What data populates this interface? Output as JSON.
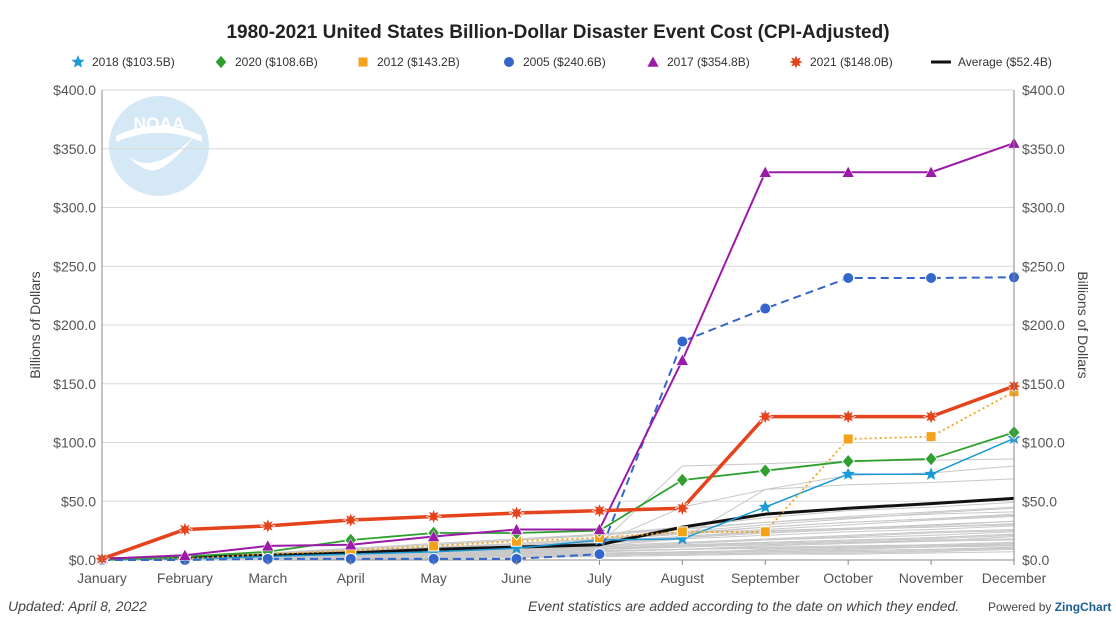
{
  "chart_data": {
    "type": "line",
    "title": "1980-2021 United States Billion-Dollar Disaster Event Cost (CPI-Adjusted)",
    "xlabel": "",
    "ylabel": "Billions of Dollars",
    "ylabel_right": "Billions of Dollars",
    "categories": [
      "January",
      "February",
      "March",
      "April",
      "May",
      "June",
      "July",
      "August",
      "September",
      "October",
      "November",
      "December"
    ],
    "ylim": [
      0,
      400
    ],
    "yticks": [
      "$0.0",
      "$50.0",
      "$100.0",
      "$150.0",
      "$200.0",
      "$250.0",
      "$300.0",
      "$350.0",
      "$400.0"
    ],
    "grid": true,
    "legend_position": "top",
    "series": [
      {
        "name": "2018 ($103.5B)",
        "color": "#1a9ad6",
        "marker": "star5",
        "dash": "solid",
        "width": 1.5,
        "values": [
          0,
          1,
          3,
          5,
          7,
          10,
          17,
          18,
          45,
          73,
          73,
          103.5
        ]
      },
      {
        "name": "2020 ($108.6B)",
        "color": "#2ea02e",
        "marker": "diamond",
        "dash": "solid",
        "width": 1.8,
        "values": [
          0,
          3,
          7,
          17,
          23,
          23,
          25,
          68,
          76,
          84,
          86,
          108.6
        ]
      },
      {
        "name": "2012 ($143.2B)",
        "color": "#f5a21b",
        "marker": "square",
        "dash": "dotted",
        "width": 1.8,
        "values": [
          0,
          1,
          5,
          8,
          12,
          16,
          19,
          24,
          24,
          103,
          105,
          143.2
        ]
      },
      {
        "name": "2005 ($240.6B)",
        "color": "#3466cc",
        "marker": "circle",
        "dash": "dashed",
        "width": 2,
        "values": [
          0,
          0,
          1,
          1,
          1,
          1,
          5,
          186,
          214,
          240,
          240,
          240.6
        ]
      },
      {
        "name": "2017 ($354.8B)",
        "color": "#9b1ba8",
        "marker": "triangle",
        "dash": "solid",
        "width": 2,
        "values": [
          1,
          4,
          12,
          13,
          20,
          26,
          26,
          170,
          330,
          330,
          330,
          354.8
        ]
      },
      {
        "name": "2021 ($148.0B)",
        "color": "#e5431b",
        "marker": "burst",
        "dash": "solid",
        "width": 3.5,
        "values": [
          1,
          26,
          29,
          34,
          37,
          40,
          42,
          44,
          122,
          122,
          122,
          148.0
        ]
      },
      {
        "name": "Average ($52.4B)",
        "color": "#111111",
        "marker": "none",
        "dash": "solid",
        "width": 3,
        "values": [
          1,
          2,
          4,
          6,
          9,
          11,
          13,
          28,
          39,
          44,
          48,
          52.4
        ]
      }
    ],
    "background_years": [
      [
        0,
        1,
        2,
        3,
        5,
        6,
        8,
        9,
        10,
        11,
        12,
        14
      ],
      [
        0,
        0,
        1,
        2,
        3,
        5,
        7,
        9,
        12,
        14,
        16,
        20
      ],
      [
        1,
        2,
        3,
        4,
        6,
        8,
        10,
        13,
        15,
        17,
        19,
        22
      ],
      [
        0,
        1,
        1,
        2,
        2,
        3,
        4,
        6,
        9,
        11,
        13,
        15
      ],
      [
        0,
        2,
        4,
        6,
        9,
        12,
        15,
        20,
        25,
        27,
        29,
        33
      ],
      [
        1,
        1,
        2,
        3,
        4,
        5,
        6,
        7,
        8,
        9,
        11,
        12
      ],
      [
        0,
        1,
        3,
        5,
        8,
        11,
        14,
        19,
        23,
        26,
        28,
        30
      ],
      [
        0,
        0,
        0,
        1,
        1,
        2,
        3,
        4,
        5,
        6,
        7,
        9
      ],
      [
        1,
        3,
        5,
        8,
        11,
        14,
        17,
        22,
        28,
        32,
        35,
        38
      ],
      [
        0,
        1,
        2,
        4,
        7,
        10,
        14,
        18,
        21,
        24,
        26,
        29
      ],
      [
        0,
        2,
        3,
        5,
        6,
        8,
        10,
        12,
        14,
        16,
        18,
        21
      ],
      [
        0,
        1,
        1,
        1,
        2,
        3,
        4,
        5,
        6,
        7,
        8,
        10
      ],
      [
        0,
        2,
        5,
        9,
        13,
        17,
        22,
        28,
        36,
        42,
        45,
        49
      ],
      [
        0,
        1,
        2,
        3,
        5,
        7,
        9,
        11,
        13,
        15,
        17,
        18
      ],
      [
        1,
        2,
        4,
        7,
        10,
        14,
        18,
        24,
        30,
        35,
        40,
        44
      ],
      [
        0,
        1,
        2,
        2,
        3,
        4,
        5,
        6,
        7,
        8,
        9,
        11
      ],
      [
        0,
        1,
        3,
        6,
        10,
        14,
        18,
        22,
        26,
        30,
        34,
        37
      ],
      [
        0,
        2,
        4,
        6,
        8,
        10,
        12,
        15,
        18,
        21,
        24,
        26
      ],
      [
        0,
        0,
        1,
        2,
        3,
        4,
        5,
        7,
        8,
        10,
        11,
        13
      ],
      [
        0,
        1,
        2,
        4,
        6,
        9,
        12,
        18,
        60,
        72,
        74,
        80
      ],
      [
        0,
        3,
        6,
        9,
        13,
        17,
        21,
        26,
        32,
        37,
        41,
        45
      ],
      [
        0,
        1,
        2,
        3,
        4,
        6,
        8,
        9,
        10,
        11,
        12,
        13
      ],
      [
        0,
        1,
        3,
        5,
        7,
        10,
        13,
        80,
        82,
        84,
        85,
        86
      ],
      [
        0,
        2,
        4,
        7,
        10,
        13,
        16,
        20,
        24,
        27,
        30,
        33
      ],
      [
        0,
        1,
        1,
        2,
        3,
        4,
        5,
        6,
        7,
        8,
        9,
        10
      ],
      [
        0,
        2,
        5,
        8,
        11,
        14,
        18,
        23,
        28,
        32,
        35,
        39
      ],
      [
        0,
        1,
        2,
        3,
        5,
        7,
        9,
        12,
        15,
        17,
        19,
        22
      ],
      [
        0,
        1,
        2,
        4,
        6,
        8,
        11,
        14,
        17,
        19,
        21,
        24
      ],
      [
        1,
        3,
        6,
        10,
        14,
        18,
        22,
        27,
        32,
        36,
        39,
        41
      ],
      [
        0,
        0,
        1,
        1,
        2,
        2,
        3,
        4,
        5,
        5,
        6,
        7
      ],
      [
        0,
        2,
        4,
        6,
        9,
        12,
        15,
        19,
        23,
        26,
        28,
        31
      ],
      [
        0,
        1,
        3,
        5,
        8,
        11,
        14,
        45,
        60,
        64,
        66,
        69
      ],
      [
        0,
        1,
        2,
        3,
        5,
        7,
        9,
        11,
        13,
        15,
        16,
        17
      ],
      [
        0,
        2,
        3,
        5,
        7,
        9,
        11,
        14,
        17,
        20,
        23,
        25
      ],
      [
        0,
        1,
        2,
        3,
        4,
        5,
        7,
        9,
        11,
        12,
        13,
        15
      ]
    ],
    "background_color": "#c8c8c8"
  },
  "footer": {
    "updated": "Updated: April 8, 2022",
    "note": "Event statistics are added according to the date on which they ended.",
    "powered_prefix": "Powered by ",
    "powered_brand": "ZingChart"
  },
  "logo": {
    "text": "NOAA",
    "color": "#d5e8f5"
  }
}
